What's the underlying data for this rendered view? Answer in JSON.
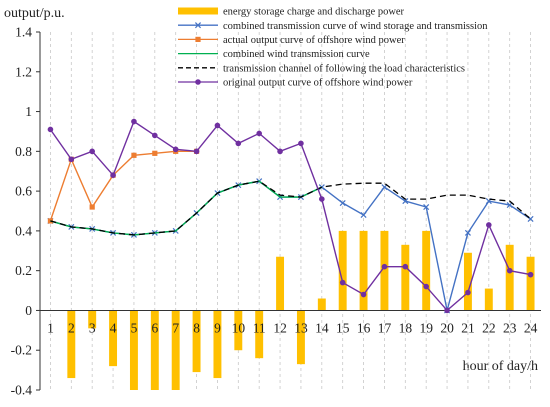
{
  "chart_data": {
    "type": "bar+line",
    "ylabel": "output/p.u.",
    "xlabel": "hour of day/h",
    "ylim": [
      -0.4,
      1.4
    ],
    "yticks": [
      -0.4,
      -0.2,
      0,
      0.2,
      0.4,
      0.6,
      0.8,
      1,
      1.2,
      1.4
    ],
    "ytick_labels": [
      "-0.4",
      "-0.2",
      "0",
      "0.2",
      "0.4",
      "0.6",
      "0.8",
      "1",
      "1.2",
      "1.4"
    ],
    "categories": [
      "1",
      "2",
      "3",
      "4",
      "5",
      "6",
      "7",
      "8",
      "9",
      "10",
      "11",
      "12",
      "13",
      "14",
      "15",
      "16",
      "17",
      "18",
      "19",
      "20",
      "21",
      "22",
      "23",
      "24"
    ],
    "grid": "vertical dashed",
    "legend_position": "top-right",
    "series": [
      {
        "name": "energy storage charge and discharge power",
        "type": "bar",
        "color": "#FFC000",
        "values": [
          0,
          -0.34,
          -0.09,
          -0.28,
          -0.4,
          -0.4,
          -0.4,
          -0.31,
          -0.34,
          -0.2,
          -0.24,
          0.27,
          -0.27,
          0.06,
          0.4,
          0.4,
          0.4,
          0.33,
          0.4,
          0,
          0.29,
          0.11,
          0.33,
          0.27
        ]
      },
      {
        "name": "combined transmission curve of wind storage and transmission",
        "type": "line",
        "color": "#4472C4",
        "marker": "x",
        "values": [
          0.45,
          0.42,
          0.41,
          0.39,
          0.38,
          0.39,
          0.4,
          0.49,
          0.59,
          0.63,
          0.65,
          0.57,
          0.57,
          0.62,
          0.54,
          0.48,
          0.62,
          0.55,
          0.52,
          0,
          0.39,
          0.55,
          0.53,
          0.46
        ]
      },
      {
        "name": "actual output curve of offshore wind power",
        "type": "line",
        "color": "#ED7D31",
        "marker": "square",
        "values": [
          0.45,
          0.76,
          0.52,
          0.68,
          0.78,
          0.79,
          0.8,
          0.8,
          null,
          null,
          null,
          null,
          null,
          null,
          null,
          null,
          null,
          null,
          null,
          null,
          null,
          null,
          null,
          null
        ]
      },
      {
        "name": "combined wind transmission curve",
        "type": "line",
        "color": "#00B050",
        "marker": "none",
        "values": [
          0.45,
          0.42,
          0.41,
          0.39,
          0.38,
          0.39,
          0.4,
          0.49,
          0.59,
          0.63,
          0.65,
          0.57,
          0.57,
          0.62,
          null,
          null,
          null,
          null,
          null,
          null,
          null,
          null,
          null,
          null
        ]
      },
      {
        "name": "transmission channel of following the load characteristics",
        "type": "line",
        "color": "#000000",
        "dashed": true,
        "marker": "none",
        "values": [
          0.45,
          0.42,
          0.41,
          0.39,
          0.38,
          0.39,
          0.4,
          0.49,
          0.59,
          0.63,
          0.65,
          0.58,
          0.57,
          0.62,
          0.635,
          0.64,
          0.64,
          0.56,
          0.56,
          0.58,
          0.58,
          0.56,
          0.55,
          0.46
        ]
      },
      {
        "name": "original output curve of offshore wind power",
        "type": "line",
        "color": "#7030A0",
        "marker": "circle",
        "values": [
          0.91,
          0.76,
          0.8,
          0.68,
          0.95,
          0.88,
          0.81,
          0.8,
          0.93,
          0.84,
          0.89,
          0.8,
          0.84,
          0.56,
          0.14,
          0.08,
          0.22,
          0.22,
          0.12,
          0,
          0.09,
          0.43,
          0.2,
          0.18
        ]
      }
    ]
  }
}
